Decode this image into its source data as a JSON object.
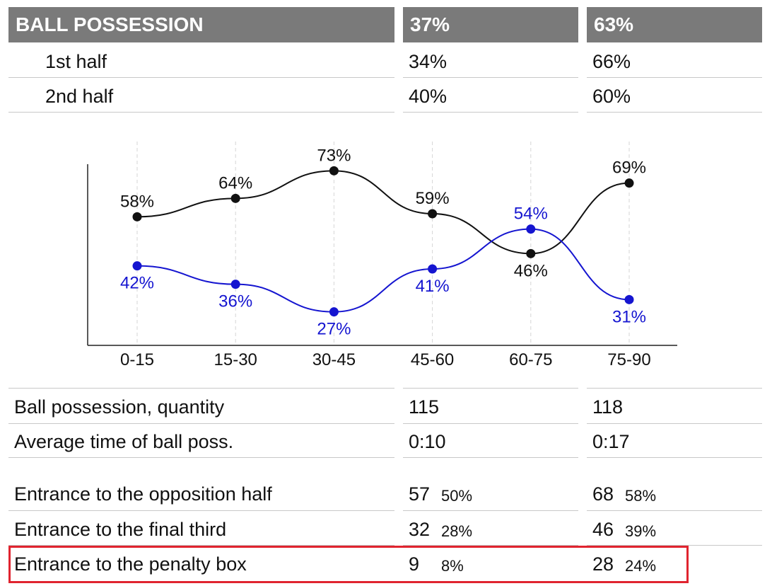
{
  "header": {
    "title": "BALL POSSESSION",
    "team_a_total": "37%",
    "team_b_total": "63%"
  },
  "halves": [
    {
      "label": "1st half",
      "team_a": "34%",
      "team_b": "66%"
    },
    {
      "label": "2nd half",
      "team_a": "40%",
      "team_b": "60%"
    }
  ],
  "chart_data": {
    "type": "line",
    "categories": [
      "0-15",
      "15-30",
      "30-45",
      "45-60",
      "60-75",
      "75-90"
    ],
    "series": [
      {
        "color": "#111111",
        "values": [
          58,
          64,
          73,
          59,
          46,
          69
        ],
        "labels": [
          "58%",
          "64%",
          "73%",
          "59%",
          "46%",
          "69%"
        ]
      },
      {
        "color": "#1515d0",
        "values": [
          42,
          36,
          27,
          41,
          54,
          31
        ],
        "labels": [
          "42%",
          "36%",
          "27%",
          "41%",
          "54%",
          "31%"
        ]
      }
    ],
    "ylim": [
      20,
      80
    ],
    "grid": "vertical-dashed"
  },
  "stats": [
    {
      "label": "Ball possession, quantity",
      "team_a": "115",
      "team_a_pct": "",
      "team_b": "118",
      "team_b_pct": ""
    },
    {
      "label": "Average time of ball poss.",
      "team_a": "0:10",
      "team_a_pct": "",
      "team_b": "0:17",
      "team_b_pct": ""
    },
    {
      "label": "Entrance to the opposition half",
      "team_a": "57",
      "team_a_pct": "50%",
      "team_b": "68",
      "team_b_pct": "58%"
    },
    {
      "label": "Entrance to the final third",
      "team_a": "32",
      "team_a_pct": "28%",
      "team_b": "46",
      "team_b_pct": "39%"
    },
    {
      "label": "Entrance to the penalty box",
      "team_a": "9",
      "team_a_pct": "8%",
      "team_b": "28",
      "team_b_pct": "24%"
    }
  ],
  "colors": {
    "header_bg": "#7a7a7a",
    "highlight": "#e0242f",
    "team_a_line": "#1515d0",
    "team_b_line": "#111111"
  }
}
